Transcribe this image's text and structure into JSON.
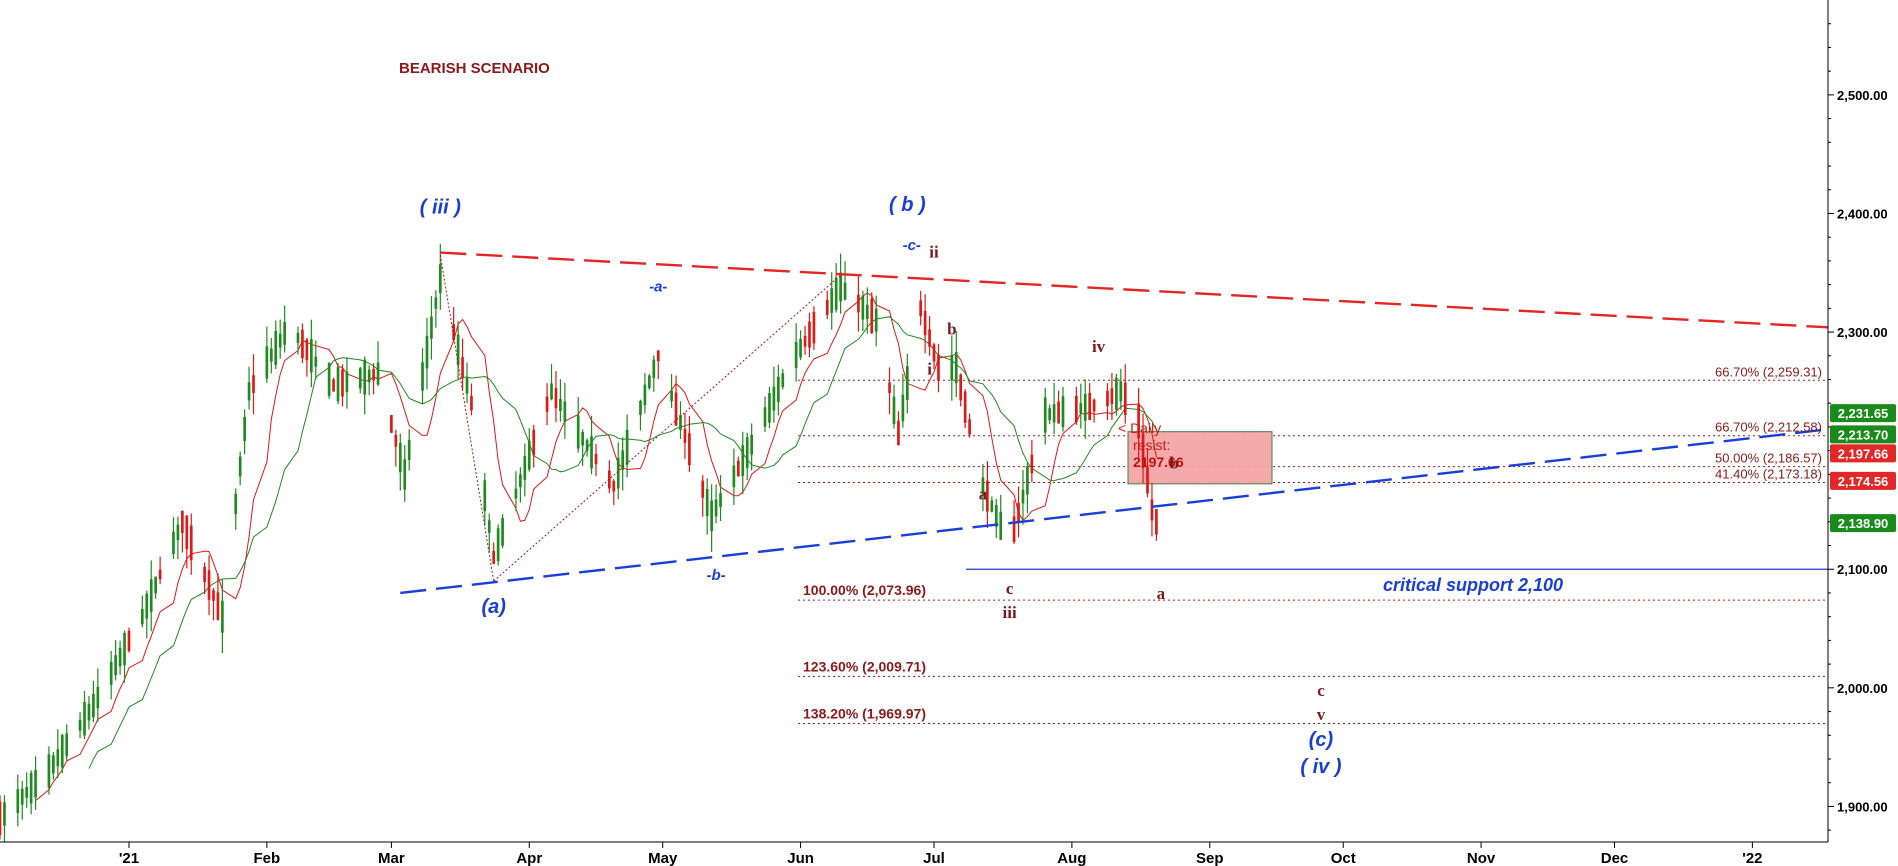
{
  "chart_data": {
    "type": "candlestick",
    "title": "BEARISH SCENARIO",
    "x_axis": {
      "tick_labels": [
        "'21",
        "Feb",
        "Mar",
        "Apr",
        "May",
        "Jun",
        "Jul",
        "Aug",
        "Sep",
        "Oct",
        "Nov",
        "Dec",
        "'22"
      ],
      "range": [
        "2020-12-03",
        "2022-01-18"
      ]
    },
    "y_axis": {
      "tick_labels": [
        "2,500.00",
        "2,400.00",
        "2,300.00",
        "2,200.00",
        "2,100.00",
        "2,000.00",
        "1,900.00"
      ],
      "tick_values": [
        2500,
        2400,
        2300,
        2200,
        2100,
        2000,
        1900
      ],
      "range": [
        1870,
        2580
      ],
      "position": "right"
    },
    "price_flags": [
      {
        "label": "2,231.65",
        "value": 2231.65,
        "color": "#1a8a1a"
      },
      {
        "label": "2,213.70",
        "value": 2213.7,
        "color": "#1a8a1a"
      },
      {
        "label": "2,197.66",
        "value": 2197.66,
        "color": "#e32626"
      },
      {
        "label": "2,174.56",
        "value": 2174.56,
        "color": "#e32626"
      },
      {
        "label": "2,138.90",
        "value": 2138.9,
        "color": "#1a8a1a"
      }
    ],
    "fib_levels": [
      {
        "label": "66.70% (2,259.31)",
        "value": 2259.31,
        "side": "right"
      },
      {
        "label": "66.70% (2,212.58)",
        "value": 2212.58,
        "side": "right"
      },
      {
        "label": "50.00% (2,186.57)",
        "value": 2186.57,
        "side": "right"
      },
      {
        "label": "41.40% (2,173.18)",
        "value": 2173.18,
        "side": "right"
      },
      {
        "label": "100.00% (2,073.96)",
        "value": 2073.96,
        "side": "left"
      },
      {
        "label": "123.60% (2,009.71)",
        "value": 2009.71,
        "side": "left"
      },
      {
        "label": "138.20% (1,969.97)",
        "value": 1969.97,
        "side": "left"
      }
    ],
    "support": {
      "label": "critical support 2,100",
      "value": 2100
    },
    "resist_box": {
      "lines": [
        "< Daily",
        "resist:",
        "2197.66"
      ],
      "top": 2216,
      "bottom": 2172
    },
    "trendlines": [
      {
        "name": "upper",
        "color": "#e32626",
        "from": [
          "2021-03-12",
          2367
        ],
        "to": [
          "2022-01-18",
          2304
        ]
      },
      {
        "name": "lower",
        "color": "#1a3fd6",
        "from": [
          "2021-03-03",
          2080
        ],
        "to": [
          "2022-01-18",
          2218
        ]
      }
    ],
    "wave_labels": [
      {
        "text": "( iii )",
        "date": "2021-03-12",
        "value": 2400,
        "color": "#1a3fd6"
      },
      {
        "text": "( b )",
        "date": "2021-06-25",
        "value": 2402,
        "color": "#1a3fd6"
      },
      {
        "text": "-c-",
        "date": "2021-06-26",
        "value": 2369,
        "color": "#1a3fd6"
      },
      {
        "text": "ii",
        "date": "2021-07-01",
        "value": 2363,
        "color": "#7a1a1a"
      },
      {
        "text": "-a-",
        "date": "2021-04-30",
        "value": 2334,
        "color": "#1a3fd6"
      },
      {
        "text": "b",
        "date": "2021-07-05",
        "value": 2298,
        "color": "#7a1a1a"
      },
      {
        "text": "i",
        "date": "2021-06-30",
        "value": 2264,
        "color": "#7a1a1a"
      },
      {
        "text": "iv",
        "date": "2021-08-07",
        "value": 2283,
        "color": "#7a1a1a"
      },
      {
        "text": "a",
        "date": "2021-07-12",
        "value": 2159,
        "color": "#7a1a1a"
      },
      {
        "text": "b",
        "date": "2021-08-24",
        "value": 2185,
        "color": "#7a1a1a"
      },
      {
        "text": "-b-",
        "date": "2021-05-13",
        "value": 2091,
        "color": "#1a3fd6"
      },
      {
        "text": "c",
        "date": "2021-07-18",
        "value": 2079,
        "color": "#7a1a1a"
      },
      {
        "text": "iii",
        "date": "2021-07-18",
        "value": 2059,
        "color": "#7a1a1a"
      },
      {
        "text": "a",
        "date": "2021-08-21",
        "value": 2075,
        "color": "#7a1a1a"
      },
      {
        "text": "(a)",
        "date": "2021-03-24",
        "value": 2063,
        "color": "#1a3fd6"
      },
      {
        "text": "c",
        "date": "2021-09-26",
        "value": 1993,
        "color": "#7a1a1a"
      },
      {
        "text": "v",
        "date": "2021-09-26",
        "value": 1973,
        "color": "#7a1a1a"
      },
      {
        "text": "(c)",
        "date": "2021-09-26",
        "value": 1951,
        "color": "#1a3fd6"
      },
      {
        "text": "( iv )",
        "date": "2021-09-26",
        "value": 1928,
        "color": "#1a3fd6"
      }
    ],
    "candle_anchors": [
      [
        "2020-12-03",
        1890
      ],
      [
        "2020-12-14",
        1930
      ],
      [
        "2020-12-24",
        1985
      ],
      [
        "2021-01-04",
        2060
      ],
      [
        "2021-01-13",
        2140
      ],
      [
        "2021-01-22",
        2060
      ],
      [
        "2021-01-28",
        2250
      ],
      [
        "2021-02-06",
        2305
      ],
      [
        "2021-02-16",
        2255
      ],
      [
        "2021-02-26",
        2265
      ],
      [
        "2021-03-04",
        2180
      ],
      [
        "2021-03-12",
        2345
      ],
      [
        "2021-03-19",
        2240
      ],
      [
        "2021-03-24",
        2110
      ],
      [
        "2021-04-06",
        2250
      ],
      [
        "2021-04-20",
        2170
      ],
      [
        "2021-04-30",
        2280
      ],
      [
        "2021-05-12",
        2145
      ],
      [
        "2021-05-21",
        2205
      ],
      [
        "2021-05-30",
        2275
      ],
      [
        "2021-06-10",
        2338
      ],
      [
        "2021-06-18",
        2310
      ],
      [
        "2021-06-23",
        2215
      ],
      [
        "2021-06-28",
        2320
      ],
      [
        "2021-07-02",
        2270
      ],
      [
        "2021-07-06",
        2270
      ],
      [
        "2021-07-12",
        2170
      ],
      [
        "2021-07-18",
        2120
      ],
      [
        "2021-07-26",
        2230
      ],
      [
        "2021-08-06",
        2238
      ],
      [
        "2021-08-12",
        2250
      ],
      [
        "2021-08-16",
        2225
      ],
      [
        "2021-08-19",
        2150
      ],
      [
        "2021-08-22",
        2120
      ]
    ]
  }
}
